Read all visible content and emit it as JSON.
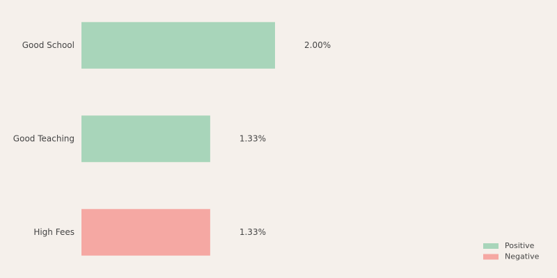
{
  "chart_data": {
    "type": "bar",
    "orientation": "horizontal",
    "categories": [
      "Good School",
      "Good Teaching",
      "High Fees"
    ],
    "series": [
      {
        "name": "Positive",
        "color": "#a8d5ba",
        "values": [
          2.0,
          1.33,
          null
        ],
        "value_labels": [
          "2.00%",
          "1.33%",
          null
        ]
      },
      {
        "name": "Negative",
        "color": "#f5a8a3",
        "values": [
          null,
          null,
          1.33
        ],
        "value_labels": [
          null,
          null,
          "1.33%"
        ]
      }
    ],
    "legend": "lower right"
  }
}
